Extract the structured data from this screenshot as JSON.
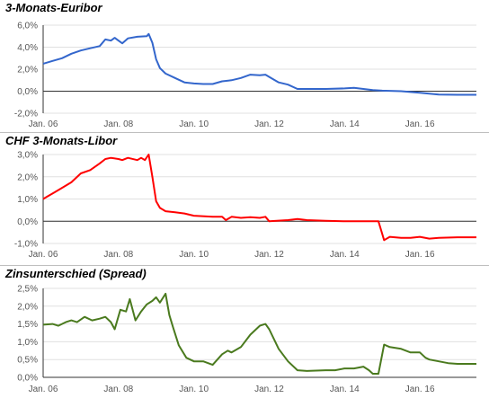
{
  "chart_data": [
    {
      "type": "line",
      "title": "3-Monats-Euribor",
      "xlabel": "",
      "ylabel": "",
      "x_ticks": [
        "Jan. 06",
        "Jan. 08",
        "Jan. 10",
        "Jan. 12",
        "Jan. 14",
        "Jan. 16"
      ],
      "y_ticks": [
        "-2,0%",
        "0,0%",
        "2,0%",
        "4,0%",
        "6,0%"
      ],
      "ylim": [
        -2.0,
        6.0
      ],
      "xlim": [
        2006.0,
        2017.5
      ],
      "zero_line": true,
      "color": "#3366cc",
      "series": [
        {
          "values": [
            [
              2006.0,
              2.5
            ],
            [
              2006.25,
              2.75
            ],
            [
              2006.5,
              3.0
            ],
            [
              2006.75,
              3.4
            ],
            [
              2007.0,
              3.7
            ],
            [
              2007.25,
              3.9
            ],
            [
              2007.5,
              4.1
            ],
            [
              2007.65,
              4.7
            ],
            [
              2007.8,
              4.6
            ],
            [
              2007.9,
              4.85
            ],
            [
              2008.0,
              4.6
            ],
            [
              2008.1,
              4.35
            ],
            [
              2008.25,
              4.8
            ],
            [
              2008.5,
              4.95
            ],
            [
              2008.75,
              5.0
            ],
            [
              2008.8,
              5.2
            ],
            [
              2008.9,
              4.4
            ],
            [
              2009.0,
              2.9
            ],
            [
              2009.1,
              2.1
            ],
            [
              2009.25,
              1.6
            ],
            [
              2009.5,
              1.2
            ],
            [
              2009.75,
              0.8
            ],
            [
              2010.0,
              0.7
            ],
            [
              2010.25,
              0.65
            ],
            [
              2010.5,
              0.65
            ],
            [
              2010.75,
              0.9
            ],
            [
              2011.0,
              1.0
            ],
            [
              2011.25,
              1.2
            ],
            [
              2011.5,
              1.5
            ],
            [
              2011.75,
              1.45
            ],
            [
              2011.9,
              1.5
            ],
            [
              2012.0,
              1.3
            ],
            [
              2012.25,
              0.8
            ],
            [
              2012.5,
              0.6
            ],
            [
              2012.75,
              0.2
            ],
            [
              2013.0,
              0.2
            ],
            [
              2013.5,
              0.2
            ],
            [
              2014.0,
              0.25
            ],
            [
              2014.25,
              0.3
            ],
            [
              2014.5,
              0.2
            ],
            [
              2014.75,
              0.1
            ],
            [
              2015.0,
              0.05
            ],
            [
              2015.5,
              0.0
            ],
            [
              2016.0,
              -0.15
            ],
            [
              2016.5,
              -0.3
            ],
            [
              2017.0,
              -0.33
            ],
            [
              2017.5,
              -0.33
            ]
          ]
        }
      ]
    },
    {
      "type": "line",
      "title": "CHF 3-Monats-Libor",
      "xlabel": "",
      "ylabel": "",
      "x_ticks": [
        "Jan. 06",
        "Jan. 08",
        "Jan. 10",
        "Jan. 12",
        "Jan. 14",
        "Jan. 16"
      ],
      "y_ticks": [
        "-1,0%",
        "0,0%",
        "1,0%",
        "2,0%",
        "3,0%"
      ],
      "ylim": [
        -1.0,
        3.0
      ],
      "xlim": [
        2006.0,
        2017.5
      ],
      "zero_line": true,
      "color": "#ff0000",
      "series": [
        {
          "values": [
            [
              2006.0,
              1.0
            ],
            [
              2006.1,
              1.1
            ],
            [
              2006.3,
              1.3
            ],
            [
              2006.5,
              1.5
            ],
            [
              2006.75,
              1.75
            ],
            [
              2007.0,
              2.15
            ],
            [
              2007.25,
              2.3
            ],
            [
              2007.5,
              2.6
            ],
            [
              2007.65,
              2.8
            ],
            [
              2007.8,
              2.85
            ],
            [
              2008.0,
              2.8
            ],
            [
              2008.1,
              2.75
            ],
            [
              2008.25,
              2.85
            ],
            [
              2008.5,
              2.75
            ],
            [
              2008.6,
              2.85
            ],
            [
              2008.7,
              2.75
            ],
            [
              2008.8,
              3.0
            ],
            [
              2008.9,
              2.0
            ],
            [
              2009.0,
              0.9
            ],
            [
              2009.1,
              0.6
            ],
            [
              2009.25,
              0.45
            ],
            [
              2009.5,
              0.4
            ],
            [
              2009.75,
              0.35
            ],
            [
              2010.0,
              0.25
            ],
            [
              2010.5,
              0.2
            ],
            [
              2010.75,
              0.2
            ],
            [
              2010.85,
              0.05
            ],
            [
              2011.0,
              0.2
            ],
            [
              2011.25,
              0.15
            ],
            [
              2011.5,
              0.18
            ],
            [
              2011.75,
              0.15
            ],
            [
              2011.9,
              0.2
            ],
            [
              2012.0,
              0.0
            ],
            [
              2012.5,
              0.05
            ],
            [
              2012.75,
              0.1
            ],
            [
              2013.0,
              0.05
            ],
            [
              2013.5,
              0.02
            ],
            [
              2014.0,
              0.0
            ],
            [
              2014.5,
              0.0
            ],
            [
              2014.9,
              0.0
            ],
            [
              2015.05,
              -0.85
            ],
            [
              2015.2,
              -0.7
            ],
            [
              2015.5,
              -0.75
            ],
            [
              2015.75,
              -0.75
            ],
            [
              2016.0,
              -0.7
            ],
            [
              2016.25,
              -0.78
            ],
            [
              2016.5,
              -0.75
            ],
            [
              2017.0,
              -0.72
            ],
            [
              2017.5,
              -0.72
            ]
          ]
        }
      ]
    },
    {
      "type": "line",
      "title": "Zinsunterschied (Spread)",
      "xlabel": "",
      "ylabel": "",
      "x_ticks": [
        "Jan. 06",
        "Jan. 08",
        "Jan. 10",
        "Jan. 12",
        "Jan. 14",
        "Jan. 16"
      ],
      "y_ticks": [
        "0,0%",
        "0,5%",
        "1,0%",
        "1,5%",
        "2,0%",
        "2,5%"
      ],
      "ylim": [
        0.0,
        2.5
      ],
      "xlim": [
        2006.0,
        2017.5
      ],
      "zero_line": false,
      "color": "#4a7a1e",
      "series": [
        {
          "values": [
            [
              2006.0,
              1.48
            ],
            [
              2006.25,
              1.5
            ],
            [
              2006.4,
              1.45
            ],
            [
              2006.6,
              1.55
            ],
            [
              2006.75,
              1.6
            ],
            [
              2006.9,
              1.55
            ],
            [
              2007.1,
              1.7
            ],
            [
              2007.3,
              1.6
            ],
            [
              2007.5,
              1.65
            ],
            [
              2007.65,
              1.7
            ],
            [
              2007.8,
              1.55
            ],
            [
              2007.9,
              1.35
            ],
            [
              2008.05,
              1.9
            ],
            [
              2008.2,
              1.85
            ],
            [
              2008.3,
              2.2
            ],
            [
              2008.45,
              1.6
            ],
            [
              2008.6,
              1.85
            ],
            [
              2008.75,
              2.05
            ],
            [
              2008.9,
              2.15
            ],
            [
              2009.0,
              2.25
            ],
            [
              2009.1,
              2.1
            ],
            [
              2009.25,
              2.35
            ],
            [
              2009.35,
              1.75
            ],
            [
              2009.45,
              1.4
            ],
            [
              2009.6,
              0.9
            ],
            [
              2009.8,
              0.55
            ],
            [
              2010.0,
              0.45
            ],
            [
              2010.25,
              0.45
            ],
            [
              2010.5,
              0.35
            ],
            [
              2010.75,
              0.65
            ],
            [
              2010.9,
              0.75
            ],
            [
              2011.0,
              0.7
            ],
            [
              2011.25,
              0.85
            ],
            [
              2011.5,
              1.2
            ],
            [
              2011.75,
              1.45
            ],
            [
              2011.9,
              1.5
            ],
            [
              2012.0,
              1.35
            ],
            [
              2012.25,
              0.8
            ],
            [
              2012.5,
              0.45
            ],
            [
              2012.75,
              0.2
            ],
            [
              2013.0,
              0.18
            ],
            [
              2013.5,
              0.2
            ],
            [
              2013.75,
              0.2
            ],
            [
              2014.0,
              0.25
            ],
            [
              2014.25,
              0.25
            ],
            [
              2014.5,
              0.3
            ],
            [
              2014.65,
              0.2
            ],
            [
              2014.75,
              0.1
            ],
            [
              2014.9,
              0.1
            ],
            [
              2015.05,
              0.92
            ],
            [
              2015.2,
              0.85
            ],
            [
              2015.5,
              0.8
            ],
            [
              2015.75,
              0.7
            ],
            [
              2016.0,
              0.7
            ],
            [
              2016.15,
              0.55
            ],
            [
              2016.25,
              0.5
            ],
            [
              2016.5,
              0.45
            ],
            [
              2016.75,
              0.4
            ],
            [
              2017.0,
              0.38
            ],
            [
              2017.5,
              0.38
            ]
          ]
        }
      ]
    }
  ]
}
